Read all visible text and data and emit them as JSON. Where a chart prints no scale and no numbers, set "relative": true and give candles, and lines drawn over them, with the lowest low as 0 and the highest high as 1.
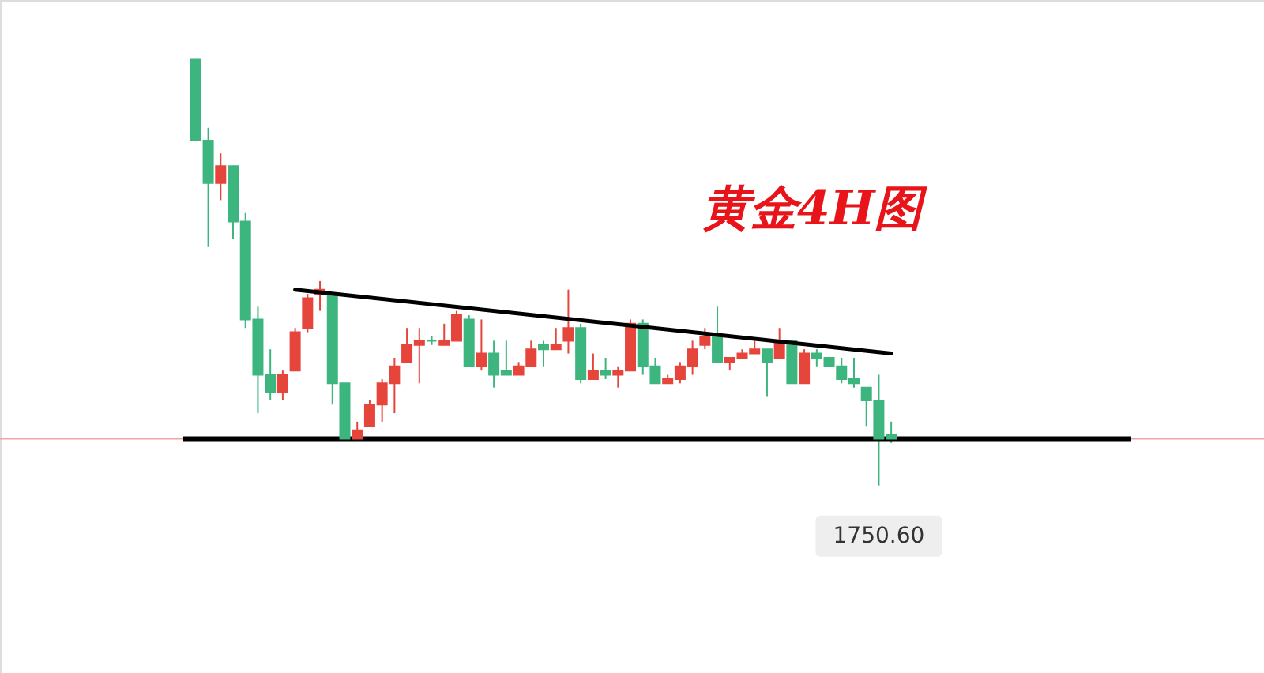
{
  "chart_data": {
    "type": "candlestick",
    "title": "黄金4H图",
    "relative": true,
    "annotations": [
      "1750.60"
    ],
    "categories": [
      null,
      null,
      null,
      null,
      null,
      null,
      null,
      null,
      null,
      null,
      null,
      null,
      null,
      null,
      null,
      null,
      null,
      null,
      null,
      null,
      null,
      null,
      null,
      null,
      null,
      null,
      null,
      null,
      null,
      null,
      null,
      null,
      null,
      null,
      null,
      null,
      null,
      null,
      null,
      null,
      null,
      null,
      null,
      null,
      null,
      null,
      null,
      null,
      null,
      null,
      null,
      null,
      null,
      null,
      null,
      null,
      null
    ],
    "ohlc": [
      [
        1.0,
        1.0,
        0.81,
        0.81
      ],
      [
        0.81,
        0.84,
        0.56,
        0.71
      ],
      [
        0.71,
        0.78,
        0.67,
        0.75
      ],
      [
        0.75,
        0.75,
        0.58,
        0.62
      ],
      [
        0.62,
        0.64,
        0.37,
        0.39
      ],
      [
        0.39,
        0.42,
        0.17,
        0.26
      ],
      [
        0.26,
        0.32,
        0.2,
        0.22
      ],
      [
        0.22,
        0.27,
        0.2,
        0.26
      ],
      [
        0.27,
        0.37,
        0.27,
        0.36
      ],
      [
        0.37,
        0.45,
        0.36,
        0.44
      ],
      [
        0.45,
        0.48,
        0.41,
        0.46
      ],
      [
        0.45,
        0.45,
        0.19,
        0.24
      ],
      [
        0.24,
        0.24,
        0.11,
        0.11
      ],
      [
        0.11,
        0.15,
        0.11,
        0.13
      ],
      [
        0.14,
        0.2,
        0.14,
        0.19
      ],
      [
        0.19,
        0.25,
        0.15,
        0.24
      ],
      [
        0.24,
        0.3,
        0.17,
        0.28
      ],
      [
        0.29,
        0.37,
        0.29,
        0.33
      ],
      [
        0.33,
        0.37,
        0.24,
        0.34
      ],
      [
        0.34,
        0.35,
        0.33,
        0.34
      ],
      [
        0.33,
        0.38,
        0.33,
        0.34
      ],
      [
        0.34,
        0.41,
        0.34,
        0.4
      ],
      [
        0.39,
        0.4,
        0.28,
        0.28
      ],
      [
        0.28,
        0.39,
        0.27,
        0.31
      ],
      [
        0.31,
        0.34,
        0.23,
        0.26
      ],
      [
        0.27,
        0.34,
        0.26,
        0.26
      ],
      [
        0.26,
        0.29,
        0.26,
        0.28
      ],
      [
        0.28,
        0.34,
        0.28,
        0.32
      ],
      [
        0.33,
        0.34,
        0.28,
        0.32
      ],
      [
        0.32,
        0.37,
        0.32,
        0.33
      ],
      [
        0.34,
        0.46,
        0.31,
        0.37
      ],
      [
        0.37,
        0.38,
        0.24,
        0.25
      ],
      [
        0.25,
        0.31,
        0.25,
        0.27
      ],
      [
        0.27,
        0.3,
        0.25,
        0.26
      ],
      [
        0.26,
        0.28,
        0.23,
        0.27
      ],
      [
        0.27,
        0.39,
        0.27,
        0.38
      ],
      [
        0.38,
        0.39,
        0.26,
        0.28
      ],
      [
        0.28,
        0.3,
        0.24,
        0.24
      ],
      [
        0.24,
        0.26,
        0.24,
        0.25
      ],
      [
        0.25,
        0.29,
        0.24,
        0.28
      ],
      [
        0.28,
        0.34,
        0.26,
        0.32
      ],
      [
        0.33,
        0.37,
        0.32,
        0.35
      ],
      [
        0.35,
        0.42,
        0.29,
        0.29
      ],
      [
        0.29,
        0.3,
        0.27,
        0.3
      ],
      [
        0.3,
        0.32,
        0.3,
        0.31
      ],
      [
        0.31,
        0.34,
        0.31,
        0.32
      ],
      [
        0.32,
        0.32,
        0.21,
        0.29
      ],
      [
        0.3,
        0.37,
        0.3,
        0.34
      ],
      [
        0.34,
        0.34,
        0.24,
        0.24
      ],
      [
        0.24,
        0.32,
        0.24,
        0.31
      ],
      [
        0.31,
        0.32,
        0.28,
        0.3
      ],
      [
        0.3,
        0.3,
        0.28,
        0.28
      ],
      [
        0.28,
        0.3,
        0.24,
        0.25
      ],
      [
        0.25,
        0.3,
        0.23,
        0.24
      ],
      [
        0.23,
        0.23,
        0.14,
        0.2
      ],
      [
        0.2,
        0.26,
        0.0,
        0.11
      ],
      [
        0.12,
        0.15,
        0.1,
        0.11
      ]
    ],
    "colors": [
      "#3cb57f",
      "#3cb57f",
      "#e6453c",
      "#3cb57f",
      "#3cb57f",
      "#3cb57f",
      "#3cb57f",
      "#e6453c",
      "#e6453c",
      "#e6453c",
      "#e6453c",
      "#3cb57f",
      "#3cb57f",
      "#e6453c",
      "#e6453c",
      "#e6453c",
      "#e6453c",
      "#e6453c",
      "#e6453c",
      "#3cb57f",
      "#e6453c",
      "#e6453c",
      "#3cb57f",
      "#e6453c",
      "#3cb57f",
      "#3cb57f",
      "#e6453c",
      "#e6453c",
      "#3cb57f",
      "#e6453c",
      "#e6453c",
      "#3cb57f",
      "#e6453c",
      "#3cb57f",
      "#e6453c",
      "#e6453c",
      "#3cb57f",
      "#3cb57f",
      "#e6453c",
      "#e6453c",
      "#e6453c",
      "#e6453c",
      "#3cb57f",
      "#e6453c",
      "#e6453c",
      "#e6453c",
      "#3cb57f",
      "#e6453c",
      "#3cb57f",
      "#e6453c",
      "#3cb57f",
      "#3cb57f",
      "#3cb57f",
      "#3cb57f",
      "#3cb57f",
      "#3cb57f",
      "#3cb57f"
    ],
    "series": [
      {
        "type": "line",
        "values": [
          null,
          null,
          null,
          null,
          null,
          null,
          null,
          null,
          0.46,
          null,
          null,
          null,
          null,
          null,
          null,
          null,
          null,
          null,
          null,
          null,
          null,
          null,
          null,
          null,
          null,
          null,
          null,
          null,
          null,
          null,
          null,
          null,
          null,
          null,
          null,
          null,
          null,
          null,
          null,
          null,
          null,
          null,
          null,
          null,
          null,
          null,
          null,
          null,
          null,
          null,
          null,
          null,
          null,
          null,
          null,
          null,
          0.31
        ],
        "color": "#000000"
      }
    ],
    "ref_lines": [
      {
        "axis": "y",
        "value": 0.11,
        "color": "#f2a3a3"
      },
      {
        "axis": "y",
        "value": 0.11,
        "color": "#000000"
      }
    ]
  }
}
